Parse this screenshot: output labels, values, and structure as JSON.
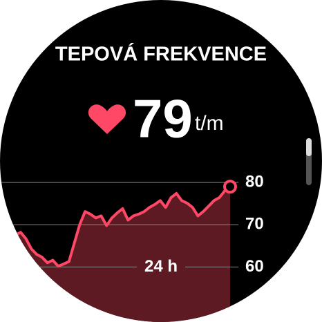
{
  "screen": {
    "title": "TEPOVÁ FREKVENCE",
    "reading": "79",
    "unit": "t/m"
  },
  "chart_data": {
    "type": "line",
    "x_label": "24 h",
    "values": [
      67.5,
      68.2,
      66.7,
      64.3,
      63,
      62.3,
      61,
      61.6,
      60.2,
      60.7,
      61.3,
      65.6,
      70,
      73.1,
      72.5,
      71.6,
      72.1,
      69.8,
      71.6,
      72.8,
      73.8,
      71.1,
      72.1,
      72.5,
      73.1,
      74.1,
      74.8,
      75.7,
      74.1,
      76.4,
      77.4,
      75.7,
      75.1,
      74.1,
      72.1,
      73.1,
      74.4,
      75.7,
      76.4,
      78,
      79
    ],
    "color": "#ff4766",
    "fill": "#5e1a22",
    "ylim": [
      47,
      80
    ],
    "yticks": [
      60,
      70,
      80
    ],
    "grid": true
  }
}
